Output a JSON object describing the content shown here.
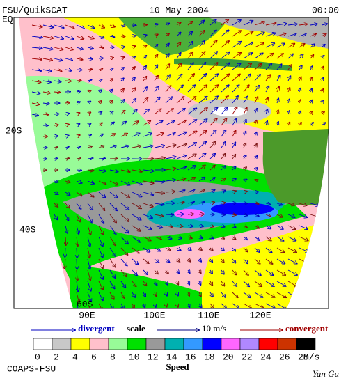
{
  "header": {
    "product": "FSU/QuikSCAT",
    "date": "10 May 2004",
    "time": "00:00"
  },
  "map": {
    "lat_labels": [
      "EQ",
      "20S",
      "40S",
      "60S"
    ],
    "lon_labels": [
      "90E",
      "100E",
      "110E",
      "120E"
    ]
  },
  "scale": {
    "divergent": "divergent",
    "scale": "scale",
    "magnitude": "10 m/s",
    "convergent": "convergent"
  },
  "colorbar": {
    "colors": [
      "#ffffff",
      "#c8c8c8",
      "#ffff00",
      "#ffc0cb",
      "#98fb98",
      "#00e000",
      "#999999",
      "#00b0b0",
      "#3399ff",
      "#0000ff",
      "#ff66ff",
      "#b088ff",
      "#ff0000",
      "#cc3300",
      "#000000"
    ],
    "labels": [
      0,
      2,
      4,
      6,
      8,
      10,
      12,
      14,
      16,
      18,
      20,
      22,
      24,
      26,
      28
    ],
    "unit": "m/s",
    "title": "Speed"
  },
  "footer": {
    "credit": "COAPS-FSU",
    "author": "Yan Gu"
  }
}
